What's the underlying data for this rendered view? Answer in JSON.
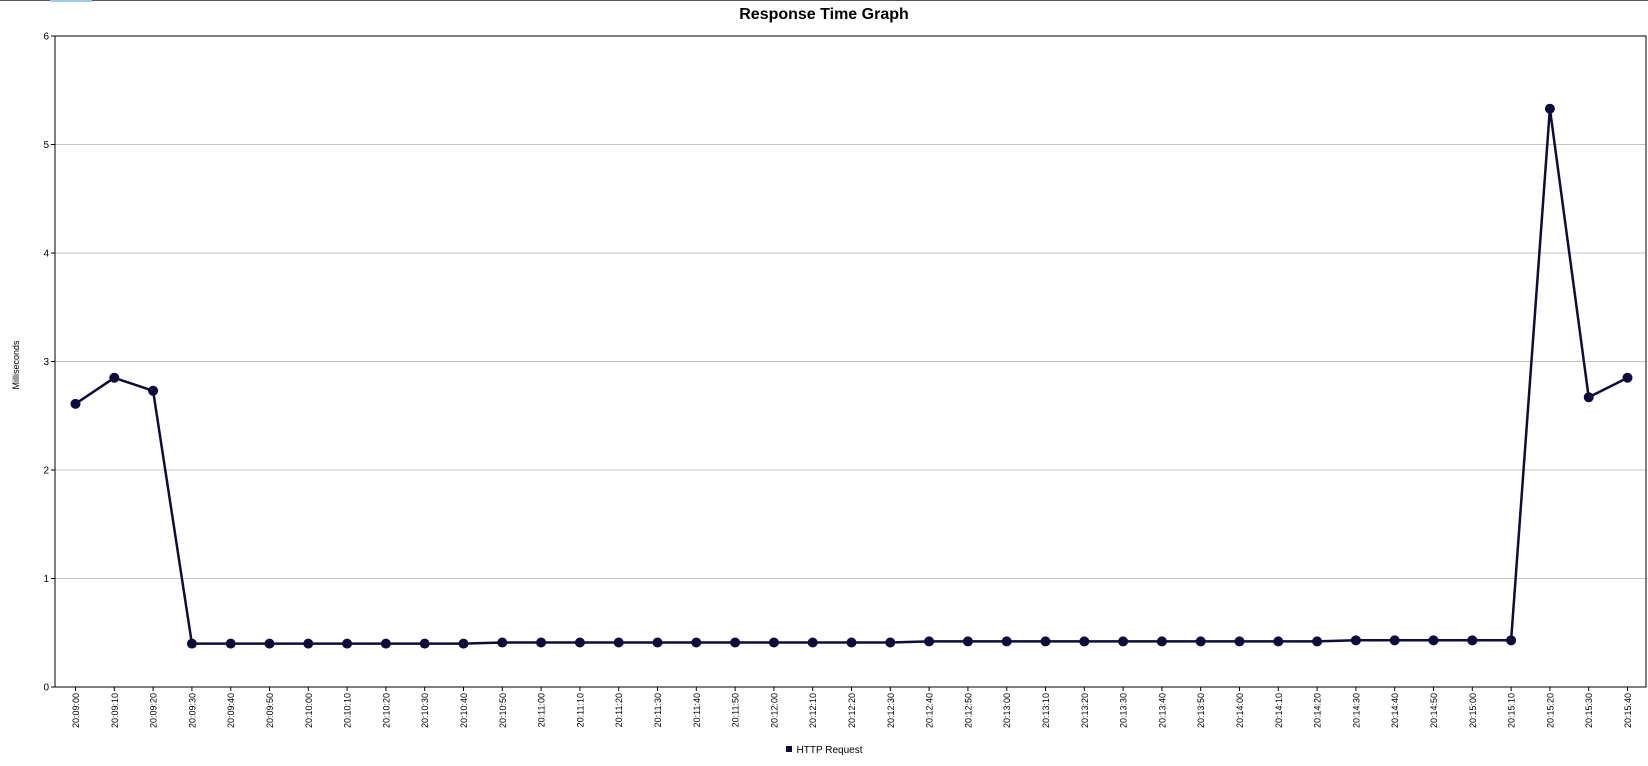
{
  "chart_data": {
    "type": "line",
    "title": "Response Time Graph",
    "xlabel": "",
    "ylabel": "Milliseconds",
    "ylim": [
      0,
      6
    ],
    "yticks": [
      "0",
      "1",
      "2",
      "3",
      "4",
      "5",
      "6"
    ],
    "grid": true,
    "legend_position": "bottom",
    "categories": [
      "20:09:00",
      "20:09:10",
      "20:09:20",
      "20:09:30",
      "20:09:40",
      "20:09:50",
      "20:10:00",
      "20:10:10",
      "20:10:20",
      "20:10:30",
      "20:10:40",
      "20:10:50",
      "20:11:00",
      "20:11:10",
      "20:11:20",
      "20:11:30",
      "20:11:40",
      "20:11:50",
      "20:12:00",
      "20:12:10",
      "20:12:20",
      "20:12:30",
      "20:12:40",
      "20:12:50",
      "20:13:00",
      "20:13:10",
      "20:13:20",
      "20:13:30",
      "20:13:40",
      "20:13:50",
      "20:14:00",
      "20:14:10",
      "20:14:20",
      "20:14:30",
      "20:14:40",
      "20:14:50",
      "20:15:00",
      "20:15:10",
      "20:15:20",
      "20:15:30",
      "20:15:40"
    ],
    "series": [
      {
        "name": "HTTP Request",
        "color": "#0d0c3a",
        "values": [
          2.61,
          2.85,
          2.73,
          0.4,
          0.4,
          0.4,
          0.4,
          0.4,
          0.4,
          0.4,
          0.4,
          0.41,
          0.41,
          0.41,
          0.41,
          0.41,
          0.41,
          0.41,
          0.41,
          0.41,
          0.41,
          0.41,
          0.42,
          0.42,
          0.42,
          0.42,
          0.42,
          0.42,
          0.42,
          0.42,
          0.42,
          0.42,
          0.42,
          0.43,
          0.43,
          0.43,
          0.43,
          0.43,
          5.33,
          2.67,
          2.85
        ]
      }
    ]
  }
}
